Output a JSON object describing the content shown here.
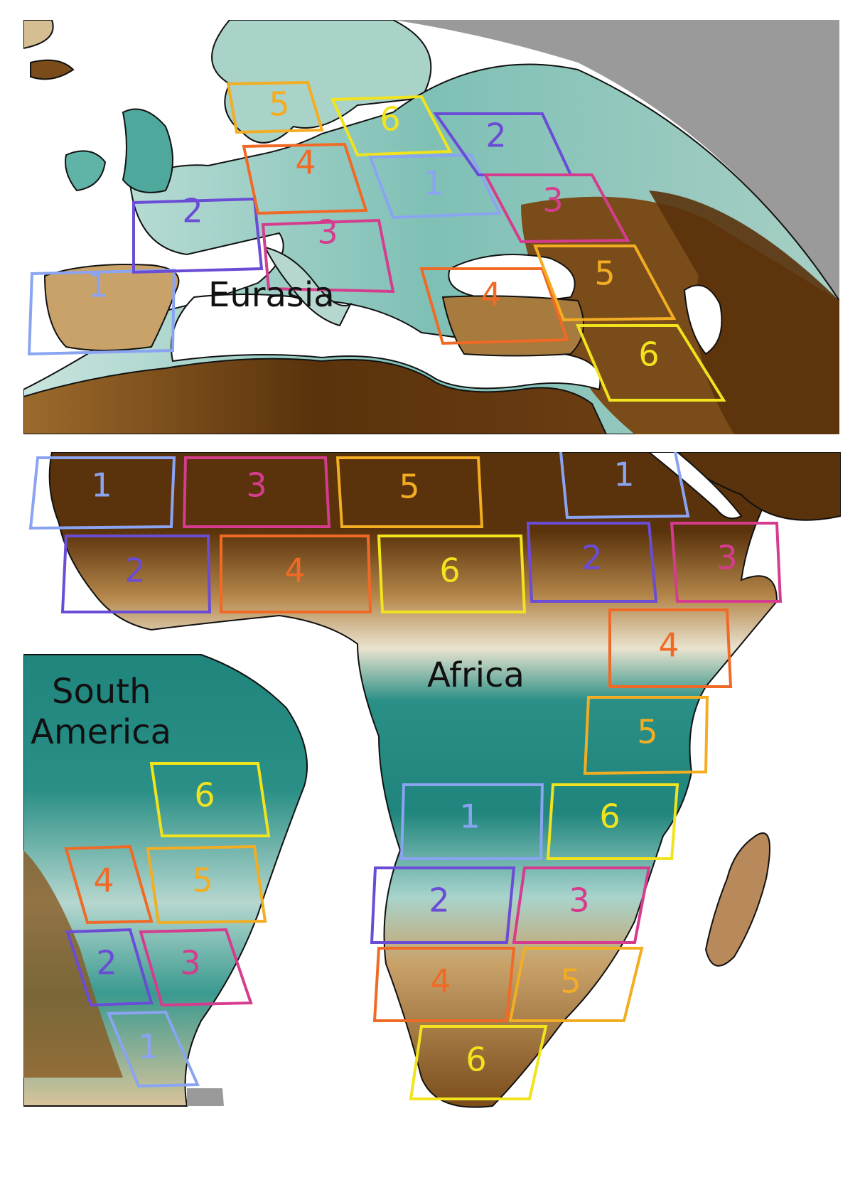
{
  "labels": {
    "eurasia": "Eurasia",
    "africa": "Africa",
    "south_america_line1": "South",
    "south_america_line2": "America"
  },
  "colors": {
    "box_1": "#8aa4f2",
    "box_2": "#6a4cd6",
    "box_3": "#d63c8e",
    "box_4": "#f06a26",
    "box_5": "#f3ad22",
    "box_6": "#f1e31d",
    "ocean": "#ffffff",
    "dry_land": "#5a320b",
    "wet_land": "#1f857d",
    "neutral_land": "#e8d8b4",
    "no_data": "#9a9a9a"
  },
  "boxes": {
    "eurasia": [
      "1",
      "2",
      "3",
      "4",
      "5",
      "6",
      "1",
      "2",
      "3",
      "4",
      "5",
      "6"
    ],
    "africa_north": [
      "1",
      "3",
      "5",
      "1",
      "2",
      "4",
      "6",
      "2",
      "3"
    ],
    "africa_east": [
      "4",
      "5"
    ],
    "africa_south": [
      "1",
      "6",
      "2",
      "3",
      "4",
      "5",
      "6"
    ],
    "south_america": [
      "6",
      "4",
      "5",
      "2",
      "3",
      "1"
    ]
  }
}
